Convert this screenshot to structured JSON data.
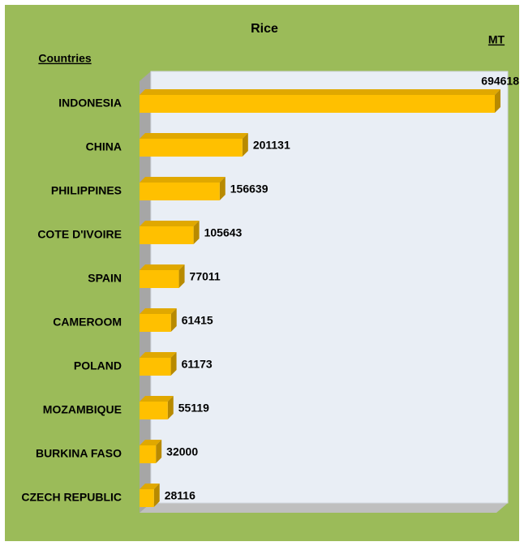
{
  "chart_data": {
    "type": "bar",
    "orientation": "horizontal",
    "title": "Rice",
    "y_label": "Countries",
    "x_label": "MT",
    "categories": [
      "INDONESIA",
      "CHINA",
      "PHILIPPINES",
      "COTE D'IVOIRE",
      "SPAIN",
      "CAMEROOM",
      "POLAND",
      "MOZAMBIQUE",
      "BURKINA FASO",
      "CZECH REPUBLIC"
    ],
    "values": [
      694618,
      201131,
      156639,
      105643,
      77011,
      61415,
      61173,
      55119,
      32000,
      28116
    ],
    "color": "#ffc000"
  }
}
